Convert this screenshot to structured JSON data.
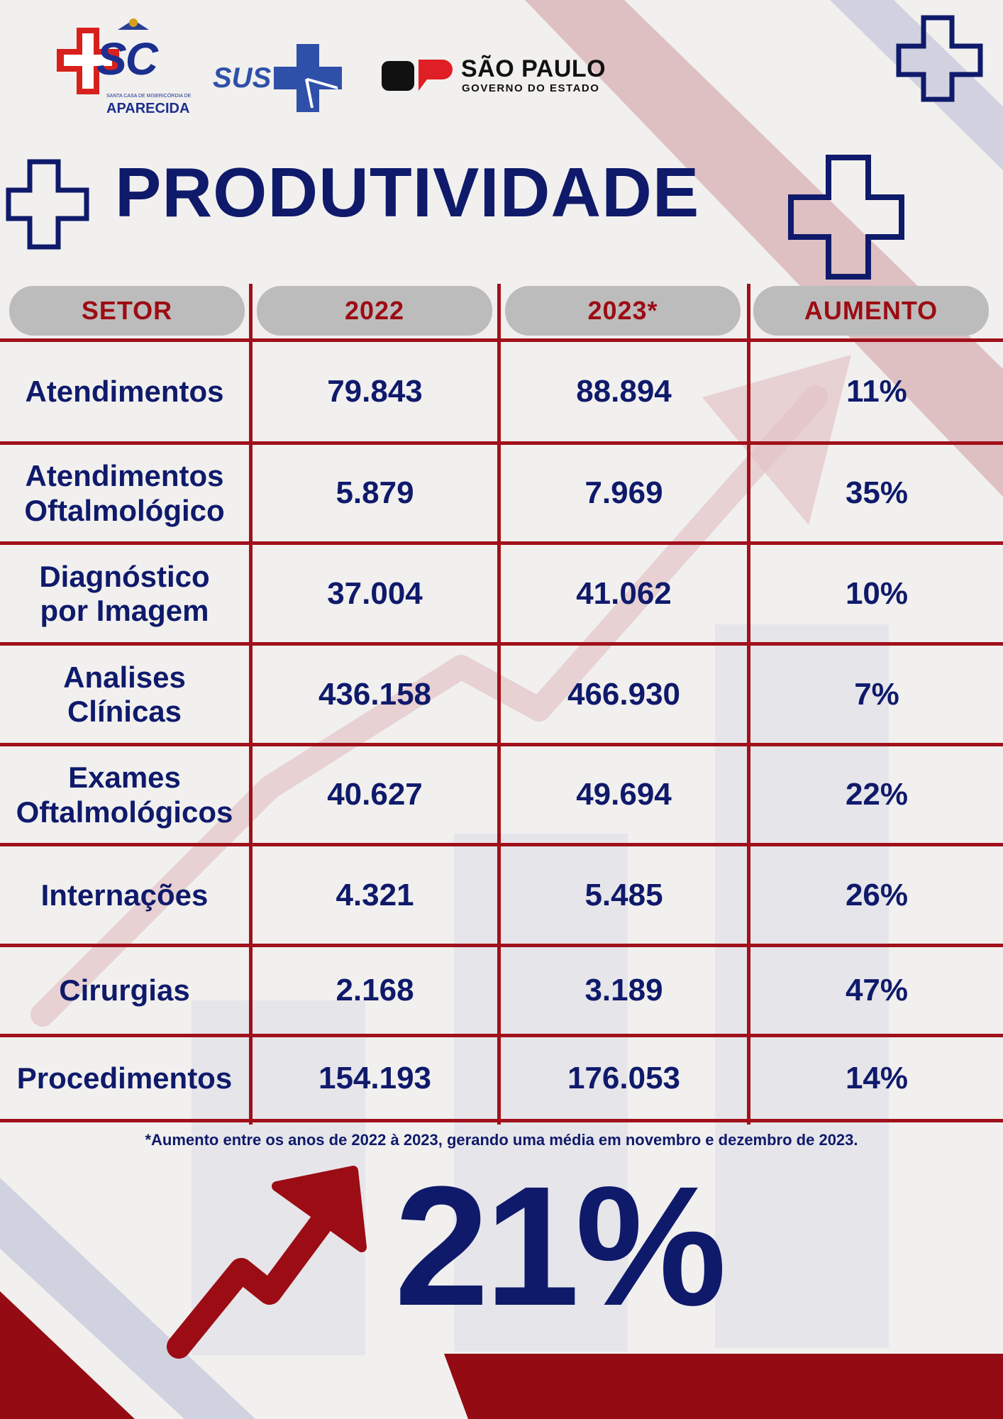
{
  "logos": {
    "santa_casa": {
      "text": "SC",
      "subtext": "SANTA CASA DE MISERICÓRDIA DE",
      "city": "APARECIDA"
    },
    "sus": {
      "text": "SUS"
    },
    "sao_paulo": {
      "title": "SÃO PAULO",
      "subtitle": "GOVERNO DO ESTADO"
    }
  },
  "title": "PRODUTIVIDADE",
  "table": {
    "headers": [
      "SETOR",
      "2022",
      "2023*",
      "AUMENTO"
    ],
    "rows": [
      {
        "setor": "Atendimentos",
        "y2022": "79.843",
        "y2023": "88.894",
        "aumento": "11%"
      },
      {
        "setor": "Atendimentos\nOftalmológico",
        "y2022": "5.879",
        "y2023": "7.969",
        "aumento": "35%"
      },
      {
        "setor": "Diagnóstico\npor Imagem",
        "y2022": "37.004",
        "y2023": "41.062",
        "aumento": "10%"
      },
      {
        "setor": "Analises\nClínicas",
        "y2022": "436.158",
        "y2023": "466.930",
        "aumento": "7%"
      },
      {
        "setor": "Exames\nOftalmológicos",
        "y2022": "40.627",
        "y2023": "49.694",
        "aumento": "22%"
      },
      {
        "setor": "Internações",
        "y2022": "4.321",
        "y2023": "5.485",
        "aumento": "26%"
      },
      {
        "setor": "Cirurgias",
        "y2022": "2.168",
        "y2023": "3.189",
        "aumento": "47%"
      },
      {
        "setor": "Procedimentos",
        "y2022": "154.193",
        "y2023": "176.053",
        "aumento": "14%"
      }
    ]
  },
  "footnote": "*Aumento entre os anos de 2022 à 2023, gerando uma média em novembro e dezembro de 2023.",
  "highlight": "21%",
  "colors": {
    "navy": "#0f1a6b",
    "red": "#a0111b",
    "pill": "#bdbcbc"
  },
  "icons": [
    "cross-outline-icon",
    "trend-arrow-icon"
  ]
}
